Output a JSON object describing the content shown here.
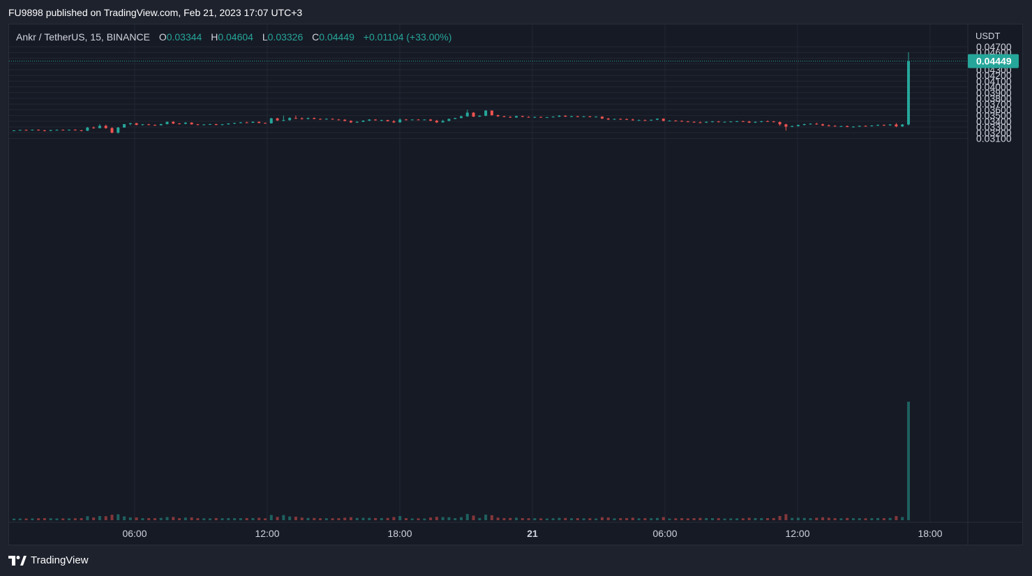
{
  "header": {
    "published_line": "FU9898 published on TradingView.com, Feb 21, 2023 17:07 UTC+3"
  },
  "legend": {
    "symbol": "Ankr / TetherUS, 15, BINANCE",
    "open_label": "O",
    "open": "0.03344",
    "high_label": "H",
    "high": "0.04604",
    "low_label": "L",
    "low": "0.03326",
    "close_label": "C",
    "close": "0.04449",
    "change": "+0.01104 (+33.00%)"
  },
  "footer": {
    "brand": "TradingView"
  },
  "colors": {
    "up": "#26a69a",
    "down": "#ef5350",
    "background": "#161a25",
    "grid": "#232733",
    "text": "#d1d4dc"
  },
  "chart_data": {
    "type": "candlestick",
    "symbol": "Ankr / TetherUS",
    "interval": "15",
    "exchange": "BINANCE",
    "currency_label": "USDT",
    "last_price": "0.04449",
    "y_ticks": [
      "0.03100",
      "0.03200",
      "0.03300",
      "0.03400",
      "0.03500",
      "0.03600",
      "0.03700",
      "0.03800",
      "0.03900",
      "0.04000",
      "0.04100",
      "0.04200",
      "0.04300",
      "0.04400",
      "0.04500",
      "0.04600",
      "0.04700"
    ],
    "x_ticks": [
      "06:00",
      "12:00",
      "18:00",
      "21",
      "06:00",
      "12:00",
      "18:00"
    ],
    "ylim": [
      0.0305,
      0.047
    ],
    "grid": true,
    "candles_description": "approximate OHLC of the visible 15-minute candles, oldest to newest",
    "candles": [
      [
        0.03232,
        0.03242,
        0.03228,
        0.0324
      ],
      [
        0.0324,
        0.03252,
        0.03236,
        0.03248
      ],
      [
        0.03248,
        0.03256,
        0.0324,
        0.03244
      ],
      [
        0.03244,
        0.03256,
        0.03238,
        0.03252
      ],
      [
        0.03252,
        0.03258,
        0.03236,
        0.0324
      ],
      [
        0.0324,
        0.0325,
        0.03225,
        0.03232
      ],
      [
        0.03232,
        0.0325,
        0.03228,
        0.03246
      ],
      [
        0.03246,
        0.03256,
        0.03238,
        0.0325
      ],
      [
        0.0325,
        0.03258,
        0.0324,
        0.03244
      ],
      [
        0.03244,
        0.03256,
        0.03236,
        0.03252
      ],
      [
        0.03252,
        0.0326,
        0.03238,
        0.03242
      ],
      [
        0.03242,
        0.0325,
        0.03225,
        0.03234
      ],
      [
        0.03234,
        0.033,
        0.0323,
        0.0329
      ],
      [
        0.0329,
        0.0331,
        0.0327,
        0.0328
      ],
      [
        0.0328,
        0.0335,
        0.03276,
        0.0332
      ],
      [
        0.0332,
        0.0334,
        0.0327,
        0.0328
      ],
      [
        0.0328,
        0.03296,
        0.0319,
        0.032
      ],
      [
        0.032,
        0.033,
        0.03184,
        0.0329
      ],
      [
        0.0329,
        0.03352,
        0.03286,
        0.0335
      ],
      [
        0.0335,
        0.03372,
        0.0333,
        0.03365
      ],
      [
        0.03365,
        0.03372,
        0.0333,
        0.03336
      ],
      [
        0.03336,
        0.0335,
        0.03326,
        0.03346
      ],
      [
        0.03346,
        0.03356,
        0.0333,
        0.03336
      ],
      [
        0.03336,
        0.03344,
        0.0332,
        0.0333
      ],
      [
        0.0333,
        0.03356,
        0.03326,
        0.0335
      ],
      [
        0.0335,
        0.03394,
        0.03344,
        0.0339
      ],
      [
        0.0339,
        0.03402,
        0.0335,
        0.0336
      ],
      [
        0.0336,
        0.0337,
        0.03346,
        0.03356
      ],
      [
        0.03356,
        0.03384,
        0.03346,
        0.03376
      ],
      [
        0.03376,
        0.03382,
        0.0334,
        0.03346
      ],
      [
        0.03346,
        0.03354,
        0.0333,
        0.03338
      ],
      [
        0.03338,
        0.0335,
        0.0333,
        0.03344
      ],
      [
        0.03344,
        0.03356,
        0.03336,
        0.0335
      ],
      [
        0.0335,
        0.03356,
        0.0333,
        0.03336
      ],
      [
        0.03336,
        0.03352,
        0.0333,
        0.03346
      ],
      [
        0.03346,
        0.03366,
        0.0334,
        0.0336
      ],
      [
        0.0336,
        0.03374,
        0.0335,
        0.0337
      ],
      [
        0.0337,
        0.03386,
        0.03362,
        0.0338
      ],
      [
        0.0338,
        0.03392,
        0.03366,
        0.03374
      ],
      [
        0.03374,
        0.03398,
        0.0337,
        0.0339
      ],
      [
        0.0339,
        0.03396,
        0.03364,
        0.0337
      ],
      [
        0.0337,
        0.03376,
        0.03356,
        0.03364
      ],
      [
        0.03364,
        0.0346,
        0.0336,
        0.0345
      ],
      [
        0.0345,
        0.0346,
        0.03406,
        0.03414
      ],
      [
        0.03414,
        0.03498,
        0.034,
        0.0342
      ],
      [
        0.0342,
        0.0347,
        0.03406,
        0.03456
      ],
      [
        0.03456,
        0.035,
        0.0344,
        0.0345
      ],
      [
        0.0345,
        0.03468,
        0.0343,
        0.0344
      ],
      [
        0.0344,
        0.03462,
        0.03432,
        0.03456
      ],
      [
        0.03456,
        0.03464,
        0.03436,
        0.0344
      ],
      [
        0.0344,
        0.0345,
        0.03428,
        0.03436
      ],
      [
        0.03436,
        0.0345,
        0.03428,
        0.03442
      ],
      [
        0.03442,
        0.03448,
        0.03426,
        0.0343
      ],
      [
        0.0343,
        0.0344,
        0.03416,
        0.03426
      ],
      [
        0.03426,
        0.03436,
        0.034,
        0.03406
      ],
      [
        0.03406,
        0.03416,
        0.0337,
        0.0338
      ],
      [
        0.0338,
        0.034,
        0.0337,
        0.0339
      ],
      [
        0.0339,
        0.03418,
        0.03386,
        0.0341
      ],
      [
        0.0341,
        0.03436,
        0.03404,
        0.0343
      ],
      [
        0.0343,
        0.03436,
        0.0341,
        0.03416
      ],
      [
        0.03416,
        0.03426,
        0.034,
        0.0342
      ],
      [
        0.0342,
        0.03426,
        0.03396,
        0.034
      ],
      [
        0.034,
        0.0342,
        0.0337,
        0.0338
      ],
      [
        0.0338,
        0.0345,
        0.03376,
        0.0343
      ],
      [
        0.0343,
        0.0344,
        0.03416,
        0.03426
      ],
      [
        0.03426,
        0.03434,
        0.03416,
        0.0343
      ],
      [
        0.0343,
        0.03436,
        0.03416,
        0.03424
      ],
      [
        0.03424,
        0.03434,
        0.03418,
        0.0343
      ],
      [
        0.0343,
        0.0344,
        0.034,
        0.0341
      ],
      [
        0.0341,
        0.03426,
        0.0337,
        0.0338
      ],
      [
        0.0338,
        0.03426,
        0.03376,
        0.03406
      ],
      [
        0.03406,
        0.03446,
        0.034,
        0.0344
      ],
      [
        0.0344,
        0.0346,
        0.03436,
        0.03456
      ],
      [
        0.03456,
        0.03498,
        0.0345,
        0.03486
      ],
      [
        0.03486,
        0.036,
        0.03476,
        0.0355
      ],
      [
        0.0355,
        0.0356,
        0.03474,
        0.0348
      ],
      [
        0.0348,
        0.03504,
        0.03476,
        0.03496
      ],
      [
        0.03496,
        0.03594,
        0.03486,
        0.03586
      ],
      [
        0.03586,
        0.0359,
        0.03496,
        0.03506
      ],
      [
        0.03506,
        0.03514,
        0.03476,
        0.03486
      ],
      [
        0.03486,
        0.03496,
        0.0347,
        0.03476
      ],
      [
        0.03476,
        0.0349,
        0.0346,
        0.03466
      ],
      [
        0.03466,
        0.03496,
        0.0346,
        0.0349
      ],
      [
        0.0349,
        0.03494,
        0.0347,
        0.03476
      ],
      [
        0.03476,
        0.03486,
        0.03464,
        0.0347
      ],
      [
        0.0347,
        0.0348,
        0.03456,
        0.03476
      ],
      [
        0.03476,
        0.0348,
        0.0346,
        0.03466
      ],
      [
        0.03466,
        0.03476,
        0.0346,
        0.0347
      ],
      [
        0.0347,
        0.03486,
        0.03464,
        0.0348
      ],
      [
        0.0348,
        0.03506,
        0.03474,
        0.03496
      ],
      [
        0.03496,
        0.03504,
        0.03476,
        0.0348
      ],
      [
        0.0348,
        0.03496,
        0.03474,
        0.03486
      ],
      [
        0.03486,
        0.03494,
        0.0347,
        0.03476
      ],
      [
        0.03476,
        0.0349,
        0.0347,
        0.03484
      ],
      [
        0.03484,
        0.03492,
        0.0347,
        0.03476
      ],
      [
        0.03476,
        0.03486,
        0.0347,
        0.0348
      ],
      [
        0.0348,
        0.03486,
        0.0344,
        0.03446
      ],
      [
        0.03446,
        0.0346,
        0.0342,
        0.0343
      ],
      [
        0.0343,
        0.03446,
        0.03426,
        0.0344
      ],
      [
        0.0344,
        0.0345,
        0.03426,
        0.03436
      ],
      [
        0.03436,
        0.0345,
        0.03424,
        0.0343
      ],
      [
        0.0343,
        0.03446,
        0.0341,
        0.03416
      ],
      [
        0.03416,
        0.0343,
        0.0341,
        0.0342
      ],
      [
        0.0342,
        0.0343,
        0.03406,
        0.03414
      ],
      [
        0.03414,
        0.0343,
        0.03406,
        0.03426
      ],
      [
        0.03426,
        0.0345,
        0.0342,
        0.03444
      ],
      [
        0.03444,
        0.0345,
        0.034,
        0.03406
      ],
      [
        0.03406,
        0.03416,
        0.034,
        0.0341
      ],
      [
        0.0341,
        0.0342,
        0.034,
        0.03406
      ],
      [
        0.03406,
        0.03414,
        0.0339,
        0.03396
      ],
      [
        0.03396,
        0.03406,
        0.03386,
        0.0339
      ],
      [
        0.0339,
        0.034,
        0.03376,
        0.0338
      ],
      [
        0.0338,
        0.03396,
        0.03366,
        0.03376
      ],
      [
        0.03376,
        0.03396,
        0.0337,
        0.0339
      ],
      [
        0.0339,
        0.03404,
        0.0338,
        0.03396
      ],
      [
        0.03396,
        0.03404,
        0.0338,
        0.03386
      ],
      [
        0.03386,
        0.03396,
        0.0338,
        0.0339
      ],
      [
        0.0339,
        0.034,
        0.0338,
        0.03396
      ],
      [
        0.03396,
        0.03406,
        0.03386,
        0.034
      ],
      [
        0.034,
        0.0341,
        0.0339,
        0.03396
      ],
      [
        0.03396,
        0.03404,
        0.0337,
        0.03376
      ],
      [
        0.03376,
        0.03396,
        0.0337,
        0.0339
      ],
      [
        0.0339,
        0.03406,
        0.0338,
        0.034
      ],
      [
        0.034,
        0.03414,
        0.0339,
        0.03396
      ],
      [
        0.03396,
        0.03406,
        0.0338,
        0.03386
      ],
      [
        0.03386,
        0.03396,
        0.0332,
        0.03346
      ],
      [
        0.03346,
        0.03356,
        0.03236,
        0.03306
      ],
      [
        0.03306,
        0.03326,
        0.03296,
        0.03316
      ],
      [
        0.03316,
        0.0334,
        0.03306,
        0.03336
      ],
      [
        0.03336,
        0.03356,
        0.03326,
        0.0335
      ],
      [
        0.0335,
        0.03364,
        0.0334,
        0.03356
      ],
      [
        0.03356,
        0.03374,
        0.0334,
        0.03346
      ],
      [
        0.03346,
        0.0336,
        0.03316,
        0.03326
      ],
      [
        0.03326,
        0.03344,
        0.0331,
        0.0332
      ],
      [
        0.0332,
        0.0333,
        0.03306,
        0.0331
      ],
      [
        0.0331,
        0.0332,
        0.033,
        0.03316
      ],
      [
        0.03316,
        0.03324,
        0.03296,
        0.033
      ],
      [
        0.033,
        0.03314,
        0.0329,
        0.03306
      ],
      [
        0.03306,
        0.03324,
        0.033,
        0.0332
      ],
      [
        0.0332,
        0.03326,
        0.03306,
        0.03316
      ],
      [
        0.03316,
        0.0333,
        0.03306,
        0.03326
      ],
      [
        0.03326,
        0.03344,
        0.03316,
        0.03336
      ],
      [
        0.03336,
        0.03344,
        0.0332,
        0.0333
      ],
      [
        0.0333,
        0.0335,
        0.0332,
        0.03344
      ],
      [
        0.03344,
        0.0337,
        0.03296,
        0.0331
      ],
      [
        0.0331,
        0.0335,
        0.033,
        0.03344
      ],
      [
        0.03344,
        0.04604,
        0.03326,
        0.04449
      ]
    ]
  }
}
